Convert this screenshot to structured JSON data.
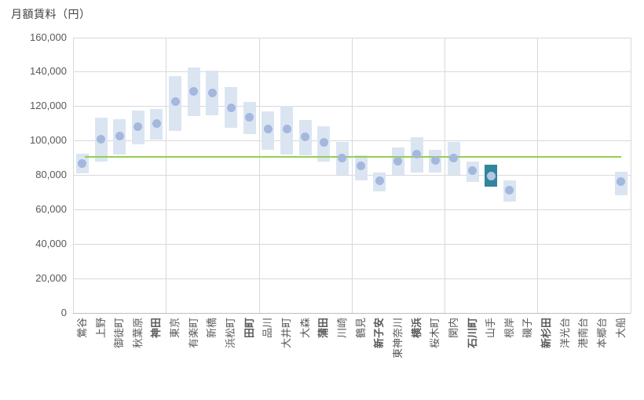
{
  "chart_data": {
    "type": "bar",
    "subtype": "floating-range-bars-with-mean-dots",
    "title": "月額賃料（円）",
    "legend": "none",
    "y_axis": {
      "min": 0,
      "max": 160000,
      "tick_interval": 20000,
      "tick_labels": [
        "0",
        "20,000",
        "40,000",
        "60,000",
        "80,000",
        "100,000",
        "120,000",
        "140,000",
        "160,000"
      ]
    },
    "grid": {
      "horizontal": true,
      "vertical_every_n_categories": 5
    },
    "reference_line": {
      "value": 90400
    },
    "highlighted_category": "山手",
    "categories": [
      "鶯谷",
      "上野",
      "御徒町",
      "秋葉原",
      "神田",
      "東京",
      "有楽町",
      "新橋",
      "浜松町",
      "田町",
      "品川",
      "大井町",
      "大森",
      "蒲田",
      "川崎",
      "鶴見",
      "新子安",
      "東神奈川",
      "横浜",
      "桜木町",
      "関内",
      "石川町",
      "山手",
      "根岸",
      "磯子",
      "新杉田",
      "洋光台",
      "港南台",
      "本郷台",
      "大船"
    ],
    "stations": [
      {
        "name": "鶯谷",
        "min": 81000,
        "max": 92500,
        "value": 86500,
        "bold": false,
        "highlight": false
      },
      {
        "name": "上野",
        "min": 88000,
        "max": 113500,
        "value": 101000,
        "bold": false,
        "highlight": false
      },
      {
        "name": "御徒町",
        "min": 92000,
        "max": 112500,
        "value": 102500,
        "bold": false,
        "highlight": false
      },
      {
        "name": "秋葉原",
        "min": 98000,
        "max": 117500,
        "value": 108000,
        "bold": false,
        "highlight": false
      },
      {
        "name": "神田",
        "min": 100500,
        "max": 118500,
        "value": 110000,
        "bold": true,
        "highlight": false
      },
      {
        "name": "東京",
        "min": 105500,
        "max": 137500,
        "value": 122500,
        "bold": false,
        "highlight": false
      },
      {
        "name": "有楽町",
        "min": 114000,
        "max": 142500,
        "value": 128500,
        "bold": false,
        "highlight": false
      },
      {
        "name": "新橋",
        "min": 114500,
        "max": 140500,
        "value": 127500,
        "bold": false,
        "highlight": false
      },
      {
        "name": "浜松町",
        "min": 107500,
        "max": 131000,
        "value": 119000,
        "bold": false,
        "highlight": false
      },
      {
        "name": "田町",
        "min": 103500,
        "max": 122500,
        "value": 113500,
        "bold": true,
        "highlight": false
      },
      {
        "name": "品川",
        "min": 94500,
        "max": 117000,
        "value": 106500,
        "bold": false,
        "highlight": false
      },
      {
        "name": "大井町",
        "min": 92000,
        "max": 120000,
        "value": 106500,
        "bold": false,
        "highlight": false
      },
      {
        "name": "大森",
        "min": 91500,
        "max": 112000,
        "value": 102000,
        "bold": false,
        "highlight": false
      },
      {
        "name": "蒲田",
        "min": 88000,
        "max": 108500,
        "value": 99000,
        "bold": true,
        "highlight": false
      },
      {
        "name": "川崎",
        "min": 80000,
        "max": 99000,
        "value": 90000,
        "bold": false,
        "highlight": false
      },
      {
        "name": "鶴見",
        "min": 77000,
        "max": 91500,
        "value": 85500,
        "bold": false,
        "highlight": false
      },
      {
        "name": "新子安",
        "min": 70500,
        "max": 81500,
        "value": 76500,
        "bold": true,
        "highlight": false
      },
      {
        "name": "東神奈川",
        "min": 80000,
        "max": 96000,
        "value": 88000,
        "bold": false,
        "highlight": false
      },
      {
        "name": "横浜",
        "min": 81500,
        "max": 102000,
        "value": 92000,
        "bold": true,
        "highlight": false
      },
      {
        "name": "桜木町",
        "min": 81500,
        "max": 94500,
        "value": 88500,
        "bold": false,
        "highlight": false
      },
      {
        "name": "関内",
        "min": 80000,
        "max": 99000,
        "value": 90000,
        "bold": false,
        "highlight": false
      },
      {
        "name": "石川町",
        "min": 76000,
        "max": 88000,
        "value": 82500,
        "bold": true,
        "highlight": false
      },
      {
        "name": "山手",
        "min": 73000,
        "max": 86000,
        "value": 79500,
        "bold": false,
        "highlight": true
      },
      {
        "name": "根岸",
        "min": 64500,
        "max": 77000,
        "value": 71000,
        "bold": false,
        "highlight": false
      },
      {
        "name": "磯子",
        "min": null,
        "max": null,
        "value": null,
        "bold": false,
        "highlight": false
      },
      {
        "name": "新杉田",
        "min": null,
        "max": null,
        "value": null,
        "bold": true,
        "highlight": false
      },
      {
        "name": "洋光台",
        "min": null,
        "max": null,
        "value": null,
        "bold": false,
        "highlight": false
      },
      {
        "name": "港南台",
        "min": null,
        "max": null,
        "value": null,
        "bold": false,
        "highlight": false
      },
      {
        "name": "本郷台",
        "min": null,
        "max": null,
        "value": null,
        "bold": false,
        "highlight": false
      },
      {
        "name": "大船",
        "min": 68000,
        "max": 82000,
        "value": 76000,
        "bold": false,
        "highlight": false
      }
    ],
    "colors": {
      "bar": "#DBE5F2",
      "dot": "#A4B7DD",
      "highlight_bar": "#31859C",
      "highlight_dot": "#B4C6E4",
      "reference_line": "#92D050",
      "gridline": "#D9D9D9",
      "axis_line": "#C0C0C0",
      "tick_text": "#595959",
      "title_text": "#404040"
    }
  }
}
